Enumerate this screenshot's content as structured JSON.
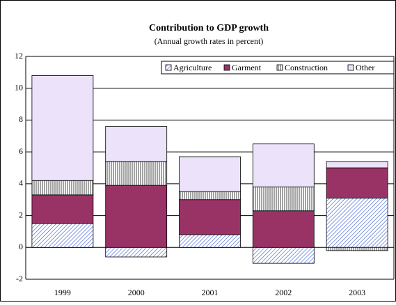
{
  "chart_data": {
    "type": "stacked_bar",
    "title": "Contribution to GDP growth",
    "subtitle": "(Annual growth rates in percent)",
    "categories": [
      "1999",
      "2000",
      "2001",
      "2002",
      "2003"
    ],
    "series": [
      {
        "name": "Agriculture",
        "color": "#3355cc",
        "pattern": "diagonal",
        "values": [
          1.5,
          -0.6,
          0.8,
          -1.0,
          3.1
        ]
      },
      {
        "name": "Garment",
        "color": "#993366",
        "pattern": "solid",
        "values": [
          1.8,
          3.9,
          2.2,
          2.3,
          1.9
        ]
      },
      {
        "name": "Construction",
        "color": "#666666",
        "pattern": "vertical",
        "values": [
          0.9,
          1.5,
          0.5,
          1.5,
          -0.2
        ]
      },
      {
        "name": "Other",
        "color": "#ece2fa",
        "pattern": "solid",
        "values": [
          6.6,
          2.2,
          2.2,
          2.7,
          0.4
        ]
      }
    ],
    "ylim": [
      -2,
      12
    ],
    "yticks": [
      -2,
      0,
      2,
      4,
      6,
      8,
      10,
      12
    ],
    "grid": true,
    "legend": "top-right"
  }
}
